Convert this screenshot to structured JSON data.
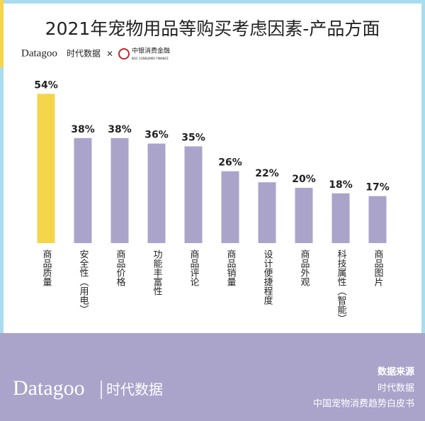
{
  "chart_data": {
    "type": "bar",
    "title": "2021年宠物用品等购买考虑因素-产品方面",
    "categories": [
      "商品质量",
      "安全性（用电）",
      "商品价格",
      "功能丰富性",
      "商品评论",
      "商品销量",
      "设计便捷程度",
      "商品外观",
      "科技属性（智能）",
      "商品图片"
    ],
    "values": [
      54,
      38,
      38,
      36,
      35,
      26,
      22,
      20,
      18,
      17
    ],
    "value_labels": [
      "54%",
      "38%",
      "38%",
      "36%",
      "35%",
      "26%",
      "22%",
      "20%",
      "18%",
      "17%"
    ],
    "colors": [
      "#f5d54a",
      "#aaa3ca",
      "#aaa3ca",
      "#aaa3ca",
      "#aaa3ca",
      "#aaa3ca",
      "#aaa3ca",
      "#aaa3ca",
      "#aaa3ca",
      "#aaa3ca"
    ]
  },
  "logos": {
    "brand": "Datagoo",
    "brand_cn": "时代数据",
    "times": "×",
    "partner": "中银消费金融",
    "partner_en": "BOC CONSUMER FINANCE"
  },
  "footer": {
    "brand": "Datagoo",
    "brand_cn": "时代数据",
    "source_title": "数据来源",
    "source_1": "时代数据",
    "source_2": "中国宠物消费趋势白皮书"
  }
}
